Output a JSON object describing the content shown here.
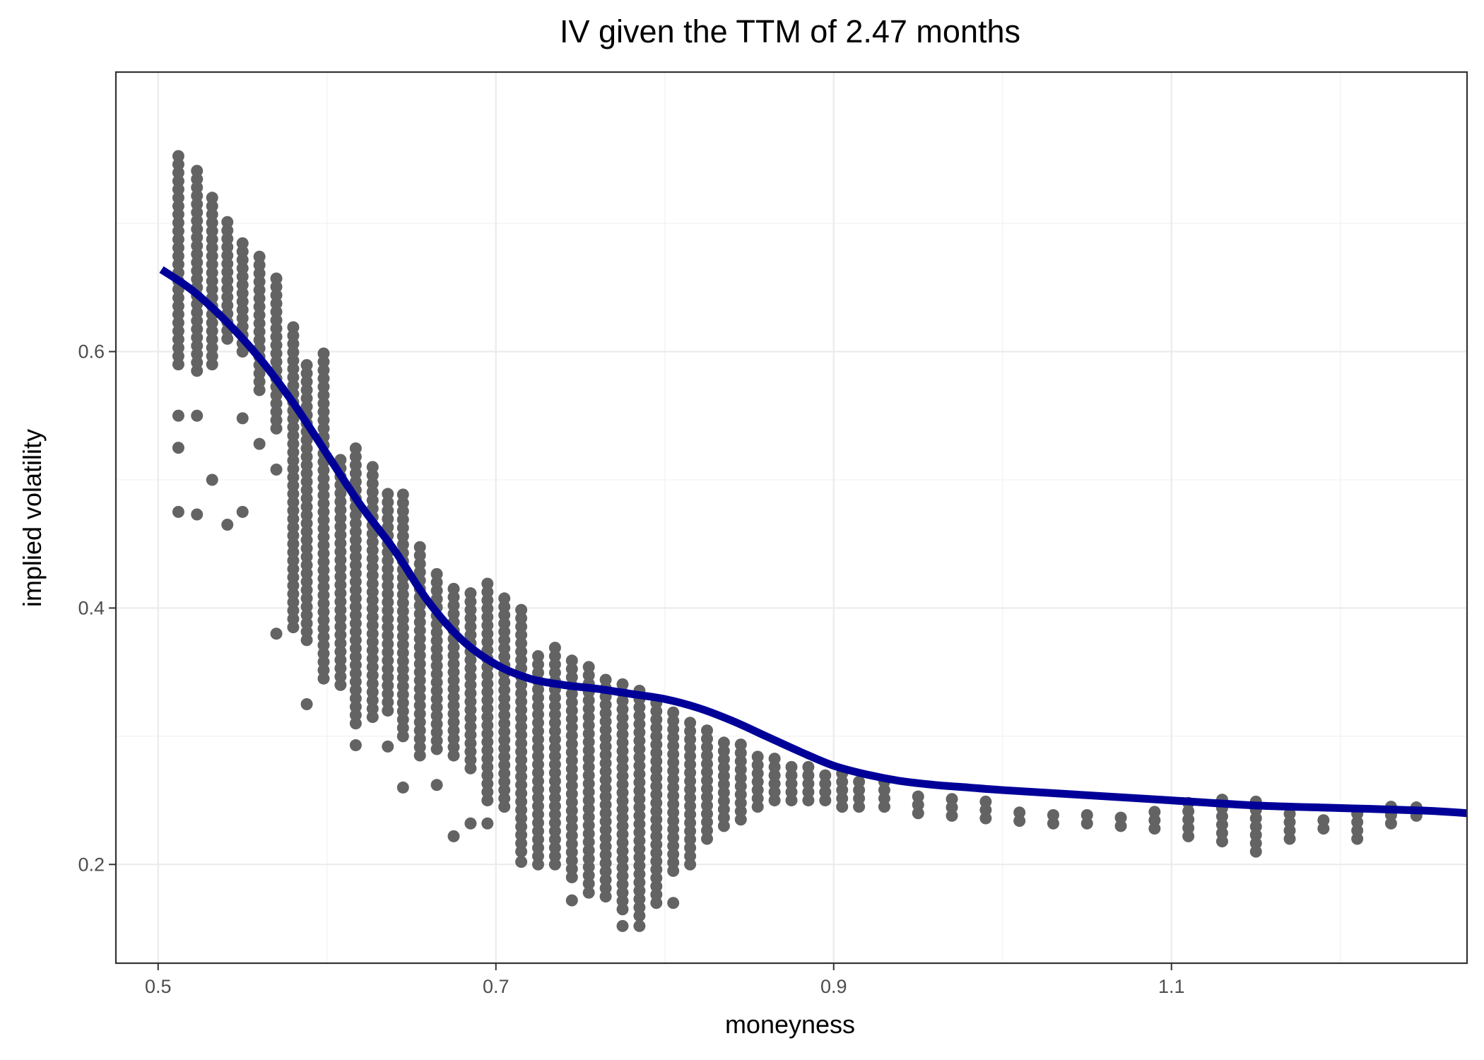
{
  "chart_data": {
    "type": "scatter",
    "title": "IV given the TTM of 2.47 months",
    "xlabel": "moneyness",
    "ylabel": "implied volatility",
    "xlim": [
      0.475,
      1.275
    ],
    "ylim": [
      0.123,
      0.818
    ],
    "x_ticks": [
      0.5,
      0.7,
      0.9,
      1.1
    ],
    "x_tick_labels": [
      "0.5",
      "0.7",
      "0.9",
      "1.1"
    ],
    "y_ticks": [
      0.2,
      0.4,
      0.6
    ],
    "y_tick_labels": [
      "0.2",
      "0.4",
      "0.6"
    ],
    "grid": true,
    "legend": "none",
    "colors": {
      "points": "#636363",
      "fit_line": "#000099"
    },
    "series": [
      {
        "kind": "points",
        "columns": [
          {
            "x": 0.512,
            "ymin": 0.59,
            "ymax": 0.755,
            "extra": [
              0.55,
              0.525,
              0.475
            ]
          },
          {
            "x": 0.523,
            "ymin": 0.585,
            "ymax": 0.745,
            "extra": [
              0.55,
              0.473
            ]
          },
          {
            "x": 0.532,
            "ymin": 0.59,
            "ymax": 0.72,
            "extra": [
              0.5
            ]
          },
          {
            "x": 0.541,
            "ymin": 0.61,
            "ymax": 0.705,
            "extra": [
              0.465
            ]
          },
          {
            "x": 0.55,
            "ymin": 0.6,
            "ymax": 0.69,
            "extra": [
              0.548,
              0.475
            ]
          },
          {
            "x": 0.56,
            "ymin": 0.57,
            "ymax": 0.68,
            "extra": [
              0.528
            ]
          },
          {
            "x": 0.57,
            "ymin": 0.54,
            "ymax": 0.66,
            "extra": [
              0.508,
              0.38
            ]
          },
          {
            "x": 0.58,
            "ymin": 0.385,
            "ymax": 0.62
          },
          {
            "x": 0.588,
            "ymin": 0.375,
            "ymax": 0.59,
            "extra": [
              0.325
            ]
          },
          {
            "x": 0.598,
            "ymin": 0.345,
            "ymax": 0.6
          },
          {
            "x": 0.608,
            "ymin": 0.34,
            "ymax": 0.52
          },
          {
            "x": 0.617,
            "ymin": 0.31,
            "ymax": 0.525,
            "extra": [
              0.293
            ]
          },
          {
            "x": 0.627,
            "ymin": 0.315,
            "ymax": 0.51
          },
          {
            "x": 0.636,
            "ymin": 0.32,
            "ymax": 0.495,
            "extra": [
              0.292
            ]
          },
          {
            "x": 0.645,
            "ymin": 0.3,
            "ymax": 0.49,
            "extra": [
              0.26
            ]
          },
          {
            "x": 0.655,
            "ymin": 0.285,
            "ymax": 0.45
          },
          {
            "x": 0.665,
            "ymin": 0.29,
            "ymax": 0.43,
            "extra": [
              0.262
            ]
          },
          {
            "x": 0.675,
            "ymin": 0.285,
            "ymax": 0.42,
            "extra": [
              0.222
            ]
          },
          {
            "x": 0.685,
            "ymin": 0.275,
            "ymax": 0.415,
            "extra": [
              0.232
            ]
          },
          {
            "x": 0.695,
            "ymin": 0.25,
            "ymax": 0.425,
            "extra": [
              0.232
            ]
          },
          {
            "x": 0.705,
            "ymin": 0.245,
            "ymax": 0.41
          },
          {
            "x": 0.715,
            "ymin": 0.21,
            "ymax": 0.4,
            "extra": [
              0.202
            ]
          },
          {
            "x": 0.725,
            "ymin": 0.2,
            "ymax": 0.365
          },
          {
            "x": 0.735,
            "ymin": 0.2,
            "ymax": 0.37
          },
          {
            "x": 0.745,
            "ymin": 0.19,
            "ymax": 0.36,
            "extra": [
              0.172
            ]
          },
          {
            "x": 0.755,
            "ymin": 0.185,
            "ymax": 0.355,
            "extra": [
              0.178
            ]
          },
          {
            "x": 0.765,
            "ymin": 0.175,
            "ymax": 0.35
          },
          {
            "x": 0.775,
            "ymin": 0.165,
            "ymax": 0.345,
            "extra": [
              0.152
            ]
          },
          {
            "x": 0.785,
            "ymin": 0.16,
            "ymax": 0.34,
            "extra": [
              0.152
            ]
          },
          {
            "x": 0.795,
            "ymin": 0.17,
            "ymax": 0.33
          },
          {
            "x": 0.805,
            "ymin": 0.195,
            "ymax": 0.32,
            "extra": [
              0.17
            ]
          },
          {
            "x": 0.815,
            "ymin": 0.2,
            "ymax": 0.315
          },
          {
            "x": 0.825,
            "ymin": 0.22,
            "ymax": 0.305
          },
          {
            "x": 0.835,
            "ymin": 0.23,
            "ymax": 0.3
          },
          {
            "x": 0.845,
            "ymin": 0.235,
            "ymax": 0.295
          },
          {
            "x": 0.855,
            "ymin": 0.245,
            "ymax": 0.29
          },
          {
            "x": 0.865,
            "ymin": 0.25,
            "ymax": 0.285
          },
          {
            "x": 0.875,
            "ymin": 0.25,
            "ymax": 0.28
          },
          {
            "x": 0.885,
            "ymin": 0.25,
            "ymax": 0.278
          },
          {
            "x": 0.895,
            "ymin": 0.25,
            "ymax": 0.275
          },
          {
            "x": 0.905,
            "ymin": 0.245,
            "ymax": 0.272
          },
          {
            "x": 0.915,
            "ymin": 0.245,
            "ymax": 0.27
          },
          {
            "x": 0.93,
            "ymin": 0.245,
            "ymax": 0.265
          },
          {
            "x": 0.95,
            "ymin": 0.24,
            "ymax": 0.258
          },
          {
            "x": 0.97,
            "ymin": 0.238,
            "ymax": 0.252
          },
          {
            "x": 0.99,
            "ymin": 0.236,
            "ymax": 0.25
          },
          {
            "x": 1.01,
            "ymin": 0.234,
            "ymax": 0.246
          },
          {
            "x": 1.03,
            "ymin": 0.232,
            "ymax": 0.244
          },
          {
            "x": 1.05,
            "ymin": 0.232,
            "ymax": 0.243
          },
          {
            "x": 1.07,
            "ymin": 0.23,
            "ymax": 0.242
          },
          {
            "x": 1.09,
            "ymin": 0.228,
            "ymax": 0.245
          },
          {
            "x": 1.11,
            "ymin": 0.222,
            "ymax": 0.25
          },
          {
            "x": 1.13,
            "ymin": 0.218,
            "ymax": 0.252
          },
          {
            "x": 1.15,
            "ymin": 0.21,
            "ymax": 0.25
          },
          {
            "x": 1.17,
            "ymin": 0.22,
            "ymax": 0.245
          },
          {
            "x": 1.19,
            "ymin": 0.228,
            "ymax": 0.24
          },
          {
            "x": 1.21,
            "ymin": 0.22,
            "ymax": 0.242
          },
          {
            "x": 1.23,
            "ymin": 0.232,
            "ymax": 0.245
          },
          {
            "x": 1.245,
            "ymin": 0.238,
            "ymax": 0.246
          }
        ]
      },
      {
        "kind": "line",
        "x": [
          0.502,
          0.52,
          0.54,
          0.56,
          0.58,
          0.6,
          0.62,
          0.64,
          0.66,
          0.68,
          0.7,
          0.72,
          0.74,
          0.76,
          0.78,
          0.8,
          0.82,
          0.84,
          0.86,
          0.88,
          0.9,
          0.92,
          0.94,
          0.96,
          0.98,
          1.0,
          1.05,
          1.1,
          1.15,
          1.2,
          1.25,
          1.275
        ],
        "y": [
          0.664,
          0.648,
          0.624,
          0.595,
          0.56,
          0.52,
          0.48,
          0.445,
          0.405,
          0.375,
          0.356,
          0.345,
          0.34,
          0.337,
          0.333,
          0.329,
          0.322,
          0.312,
          0.3,
          0.288,
          0.277,
          0.27,
          0.265,
          0.262,
          0.26,
          0.258,
          0.254,
          0.25,
          0.246,
          0.244,
          0.242,
          0.24
        ]
      }
    ]
  }
}
